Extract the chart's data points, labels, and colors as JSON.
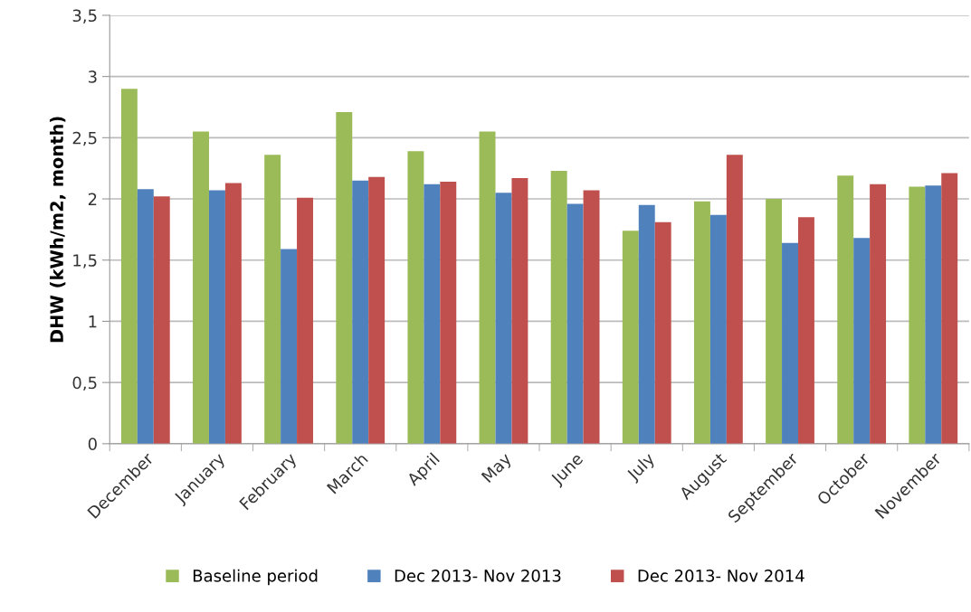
{
  "chart_data": {
    "type": "bar",
    "ylabel": "DHW (kWh/m2, month)",
    "categories": [
      "December",
      "January",
      "February",
      "March",
      "April",
      "May",
      "June",
      "July",
      "August",
      "September",
      "October",
      "November"
    ],
    "series": [
      {
        "name": "Baseline period",
        "color": "#9bbb59",
        "values": [
          2.9,
          2.55,
          2.36,
          2.71,
          2.39,
          2.55,
          2.23,
          1.74,
          1.98,
          2.0,
          2.19,
          2.1
        ]
      },
      {
        "name": "Dec 2013- Nov 2013",
        "color": "#4f81bd",
        "values": [
          2.08,
          2.07,
          1.59,
          2.15,
          2.12,
          2.05,
          1.96,
          1.95,
          1.87,
          1.64,
          1.68,
          2.11
        ]
      },
      {
        "name": "Dec 2013- Nov 2014",
        "color": "#c0504d",
        "values": [
          2.02,
          2.13,
          2.01,
          2.18,
          2.14,
          2.17,
          2.07,
          1.81,
          2.36,
          1.85,
          2.12,
          2.21
        ]
      }
    ],
    "ylim": [
      0,
      3.5
    ],
    "yticks": [
      0,
      {
        "value": 0.5,
        "label": "0,5"
      },
      1,
      {
        "value": 1.5,
        "label": "1,5"
      },
      2,
      {
        "value": 2.5,
        "label": "2,5"
      },
      3,
      {
        "value": 3.5,
        "label": "3,5"
      }
    ],
    "grid": "y",
    "legend": "bottom"
  }
}
